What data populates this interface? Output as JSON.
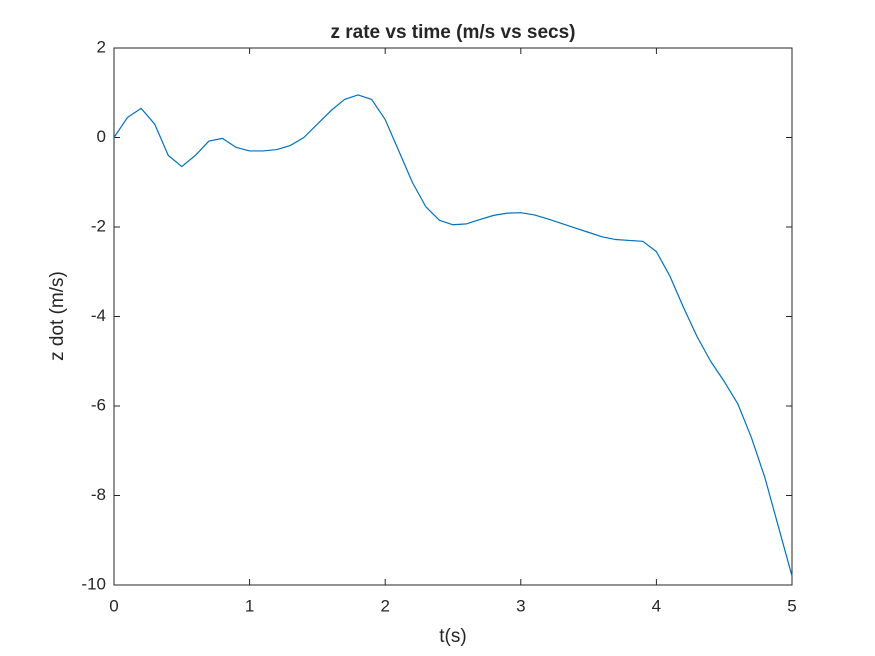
{
  "chart_data": {
    "type": "line",
    "title": "z rate vs time (m/s vs secs)",
    "x_label": "t(s)",
    "y_label": "z dot (m/s)",
    "x": [
      0,
      0.1,
      0.2,
      0.3,
      0.4,
      0.5,
      0.6,
      0.7,
      0.8,
      0.9,
      1,
      1.1,
      1.2,
      1.3,
      1.4,
      1.5,
      1.6,
      1.7,
      1.8,
      1.9,
      2,
      2.1,
      2.2,
      2.3,
      2.4,
      2.5,
      2.6,
      2.7,
      2.8,
      2.9,
      3,
      3.1,
      3.2,
      3.3,
      3.4,
      3.5,
      3.6,
      3.7,
      3.8,
      3.9,
      4,
      4.1,
      4.2,
      4.3,
      4.4,
      4.5,
      4.6,
      4.7,
      4.8,
      4.9,
      5
    ],
    "series": [
      {
        "color": "#0072bd",
        "values": [
          0,
          0.45,
          0.65,
          0.3,
          -0.4,
          -0.65,
          -0.4,
          -0.08,
          -0.02,
          -0.22,
          -0.3,
          -0.3,
          -0.27,
          -0.18,
          0,
          0.3,
          0.6,
          0.85,
          0.95,
          0.85,
          0.4,
          -0.3,
          -1,
          -1.55,
          -1.85,
          -1.95,
          -1.93,
          -1.83,
          -1.74,
          -1.69,
          -1.68,
          -1.73,
          -1.82,
          -1.92,
          -2.02,
          -2.12,
          -2.22,
          -2.28,
          -2.3,
          -2.32,
          -2.55,
          -3.1,
          -3.8,
          -4.45,
          -5,
          -5.45,
          -5.95,
          -6.7,
          -7.6,
          -8.7,
          -9.8
        ]
      }
    ],
    "xlim": [
      0,
      5
    ],
    "xticks": [
      0,
      1,
      2,
      3,
      4,
      5
    ],
    "ylim": [
      -10,
      2
    ],
    "yticks": [
      -10,
      -8,
      -6,
      -4,
      -2,
      0,
      2
    ]
  }
}
